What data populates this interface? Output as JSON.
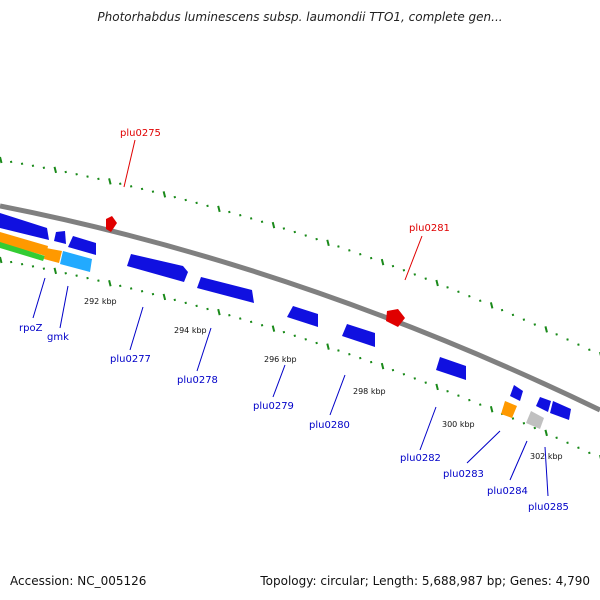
{
  "title": "Photorhabdus luminescens subsp. laumondii TTO1, complete gen...",
  "colors": {
    "backbone": "#808080",
    "tick": "#1a8a1a",
    "gene_blue": "#1010e0",
    "gene_red": "#e00000",
    "label_blue": "#0000c8",
    "label_red": "#e00000"
  },
  "scale": {
    "ticks": [
      {
        "label": "292 kbp"
      },
      {
        "label": "294 kbp"
      },
      {
        "label": "296 kbp"
      },
      {
        "label": "298 kbp"
      },
      {
        "label": "300 kbp"
      },
      {
        "label": "302 kbp"
      }
    ]
  },
  "genes": [
    {
      "label": "plu0275",
      "color": "red",
      "strand": "forward"
    },
    {
      "label": "plu0281",
      "color": "red",
      "strand": "forward"
    },
    {
      "label": "rpoZ",
      "color": "blue",
      "strand": "reverse"
    },
    {
      "label": "gmk",
      "color": "blue",
      "strand": "reverse"
    },
    {
      "label": "plu0277",
      "color": "blue",
      "strand": "reverse"
    },
    {
      "label": "plu0278",
      "color": "blue",
      "strand": "reverse"
    },
    {
      "label": "plu0279",
      "color": "blue",
      "strand": "reverse"
    },
    {
      "label": "plu0280",
      "color": "blue",
      "strand": "reverse"
    },
    {
      "label": "plu0282",
      "color": "blue",
      "strand": "reverse"
    },
    {
      "label": "plu0283",
      "color": "blue",
      "strand": "reverse"
    },
    {
      "label": "plu0284",
      "color": "blue",
      "strand": "reverse"
    },
    {
      "label": "plu0285",
      "color": "blue",
      "strand": "reverse"
    }
  ],
  "footer": {
    "accession": "Accession: NC_005126",
    "summary": "Topology: circular; Length: 5,688,987 bp; Genes: 4,790"
  }
}
